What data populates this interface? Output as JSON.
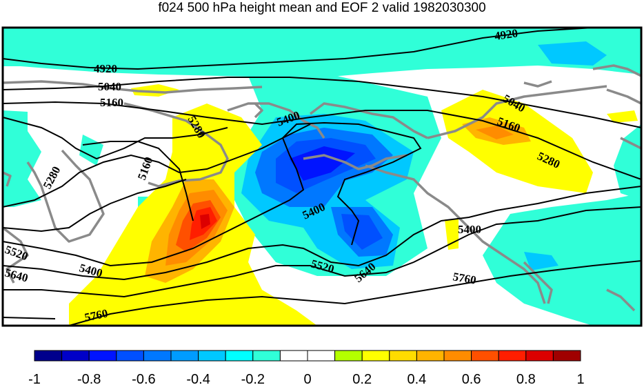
{
  "title": "f024 500 hPa height mean and EOF 2 valid 1982030300",
  "colorbar": {
    "colors": [
      "#00008c",
      "#0000c8",
      "#0014ff",
      "#0050ff",
      "#0078ff",
      "#009cff",
      "#00c8ff",
      "#00ffff",
      "#30ffd8",
      "#ffffff",
      "#ffffff",
      "#b4ff00",
      "#ffff00",
      "#ffdc00",
      "#ffb400",
      "#ff8c00",
      "#ff5000",
      "#ff1e00",
      "#dc0000",
      "#a00000"
    ],
    "ticks": [
      "-1",
      "-0.8",
      "-0.6",
      "-0.4",
      "-0.2",
      "0",
      "0.2",
      "0.4",
      "0.6",
      "0.8",
      "1"
    ]
  },
  "contour_labels": [
    "4920",
    "4920",
    "5040",
    "5040",
    "5160",
    "5160",
    "5280",
    "5280",
    "5280",
    "5400",
    "5400",
    "5400",
    "5400",
    "5520",
    "5520",
    "5640",
    "5640",
    "5760",
    "5760",
    "5160"
  ]
}
